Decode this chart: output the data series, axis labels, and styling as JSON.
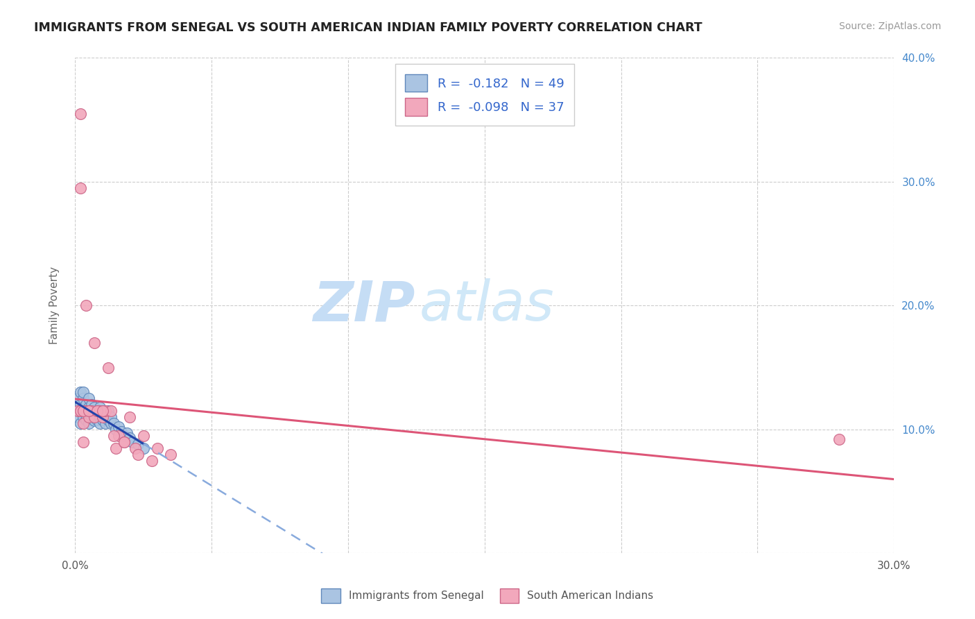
{
  "title": "IMMIGRANTS FROM SENEGAL VS SOUTH AMERICAN INDIAN FAMILY POVERTY CORRELATION CHART",
  "source": "Source: ZipAtlas.com",
  "ylabel": "Family Poverty",
  "legend_labels": [
    "Immigrants from Senegal",
    "South American Indians"
  ],
  "R_blue": -0.182,
  "N_blue": 49,
  "R_pink": -0.098,
  "N_pink": 37,
  "xlim": [
    0.0,
    0.3
  ],
  "ylim": [
    0.0,
    0.4
  ],
  "xtick_vals": [
    0.0,
    0.05,
    0.1,
    0.15,
    0.2,
    0.25,
    0.3
  ],
  "ytick_vals": [
    0.0,
    0.1,
    0.2,
    0.3,
    0.4
  ],
  "blue_color": "#aac4e2",
  "pink_color": "#f2a8bc",
  "blue_edge": "#6088bb",
  "pink_edge": "#cc6688",
  "trend_blue_solid_color": "#2244aa",
  "trend_blue_dash_color": "#88aadd",
  "trend_pink_color": "#dd5577",
  "watermark_zip": "ZIP",
  "watermark_atlas": "atlas",
  "watermark_color": "#c5ddf5",
  "background_color": "#ffffff",
  "grid_color": "#cccccc",
  "blue_x": [
    0.001,
    0.001,
    0.001,
    0.002,
    0.002,
    0.002,
    0.002,
    0.003,
    0.003,
    0.003,
    0.003,
    0.004,
    0.004,
    0.004,
    0.005,
    0.005,
    0.005,
    0.005,
    0.006,
    0.006,
    0.006,
    0.007,
    0.007,
    0.007,
    0.008,
    0.008,
    0.008,
    0.009,
    0.009,
    0.009,
    0.01,
    0.01,
    0.01,
    0.011,
    0.011,
    0.012,
    0.012,
    0.013,
    0.013,
    0.014,
    0.015,
    0.016,
    0.017,
    0.018,
    0.019,
    0.02,
    0.021,
    0.023,
    0.025
  ],
  "blue_y": [
    0.115,
    0.125,
    0.11,
    0.12,
    0.13,
    0.115,
    0.105,
    0.118,
    0.125,
    0.11,
    0.13,
    0.115,
    0.12,
    0.108,
    0.118,
    0.112,
    0.105,
    0.125,
    0.115,
    0.11,
    0.12,
    0.115,
    0.107,
    0.118,
    0.112,
    0.108,
    0.115,
    0.11,
    0.118,
    0.105,
    0.108,
    0.115,
    0.112,
    0.11,
    0.105,
    0.108,
    0.115,
    0.105,
    0.11,
    0.105,
    0.1,
    0.102,
    0.098,
    0.095,
    0.097,
    0.093,
    0.09,
    0.088,
    0.085
  ],
  "pink_x": [
    0.001,
    0.002,
    0.002,
    0.003,
    0.003,
    0.004,
    0.004,
    0.005,
    0.005,
    0.006,
    0.007,
    0.007,
    0.008,
    0.009,
    0.01,
    0.011,
    0.012,
    0.013,
    0.015,
    0.016,
    0.018,
    0.02,
    0.022,
    0.025,
    0.028,
    0.03,
    0.035,
    0.002,
    0.003,
    0.005,
    0.008,
    0.01,
    0.014,
    0.018,
    0.023,
    0.28,
    0.003
  ],
  "pink_y": [
    0.115,
    0.355,
    0.295,
    0.115,
    0.105,
    0.115,
    0.2,
    0.115,
    0.11,
    0.115,
    0.11,
    0.17,
    0.115,
    0.115,
    0.11,
    0.115,
    0.15,
    0.115,
    0.085,
    0.095,
    0.09,
    0.11,
    0.085,
    0.095,
    0.075,
    0.085,
    0.08,
    0.115,
    0.115,
    0.115,
    0.115,
    0.115,
    0.095,
    0.09,
    0.08,
    0.092,
    0.09
  ]
}
